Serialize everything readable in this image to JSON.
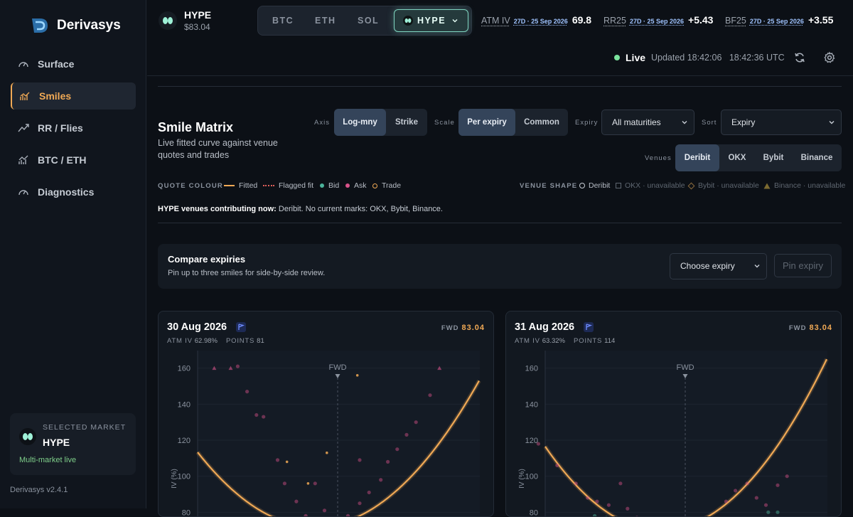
{
  "app": {
    "name": "Derivasys",
    "version": "Derivasys v2.4.1"
  },
  "sidebar": {
    "items": [
      {
        "label": "Surface",
        "icon": "gauge-icon"
      },
      {
        "label": "Smiles",
        "icon": "chart-icon",
        "active": true
      },
      {
        "label": "RR / Flies",
        "icon": "trend-icon"
      },
      {
        "label": "BTC / ETH",
        "icon": "bars-icon"
      },
      {
        "label": "Diagnostics",
        "icon": "gauge-icon"
      }
    ],
    "market_card": {
      "label": "SELECTED MARKET",
      "name": "HYPE",
      "status": "Multi-market live"
    }
  },
  "header": {
    "ticker": {
      "name": "HYPE",
      "price": "$83.04"
    },
    "assets": [
      "BTC",
      "ETH",
      "SOL",
      "HYPE"
    ],
    "selected_asset": "HYPE",
    "metrics": [
      {
        "label": "ATM IV",
        "date": "27D · 25 Sep 2026",
        "value": "69.8"
      },
      {
        "label": "RR25",
        "date": "27D · 25 Sep 2026",
        "value": "+5.43"
      },
      {
        "label": "BF25",
        "date": "27D · 25 Sep 2026",
        "value": "+3.55"
      }
    ],
    "status": {
      "live": "Live",
      "updated": "Updated 18:42:06",
      "time": "18:42:36 UTC"
    }
  },
  "smile_matrix": {
    "title": "Smile Matrix",
    "subtitle": "Live fitted curve against venue quotes and trades",
    "axis": {
      "label": "Axis",
      "options": [
        "Log-mny",
        "Strike"
      ],
      "selected": "Log-mny"
    },
    "scale": {
      "label": "Scale",
      "options": [
        "Per expiry",
        "Common"
      ],
      "selected": "Per expiry"
    },
    "expiry": {
      "label": "Expiry",
      "value": "All maturities"
    },
    "sort": {
      "label": "Sort",
      "value": "Expiry"
    },
    "venues": {
      "label": "Venues",
      "options": [
        "Deribit",
        "OKX",
        "Bybit",
        "Binance"
      ],
      "selected": "Deribit"
    },
    "quote_colour": {
      "label": "QUOTE COLOUR",
      "items": [
        {
          "label": "Fitted",
          "color": "#f0a955"
        },
        {
          "label": "Flagged fit",
          "color": "#e0605a"
        },
        {
          "label": "Bid",
          "color": "#4bb39a"
        },
        {
          "label": "Ask",
          "color": "#d9538a"
        },
        {
          "label": "Trade",
          "color": "#f0a955"
        }
      ]
    },
    "venue_shape": {
      "label": "VENUE SHAPE",
      "items": [
        {
          "label": "Deribit"
        },
        {
          "label": "OKX · unavailable"
        },
        {
          "label": "Bybit · unavailable"
        },
        {
          "label": "Binance · unavailable"
        }
      ]
    },
    "contrib": {
      "strong": "HYPE venues contributing now:",
      "text": " Deribit. No current marks: OKX, Bybit, Binance."
    }
  },
  "compare": {
    "title": "Compare expiries",
    "subtitle": "Pin up to three smiles for side-by-side review.",
    "select": "Choose expiry",
    "button": "Pin expiry"
  },
  "cards": [
    {
      "date": "30 Aug 2026",
      "fwd_label": "FWD",
      "fwd": "83.04",
      "atm_label": "ATM IV",
      "atm": "62.98%",
      "points_label": "POINTS",
      "points": "81"
    },
    {
      "date": "31 Aug 2026",
      "fwd_label": "FWD",
      "fwd": "83.04",
      "atm_label": "ATM IV",
      "atm": "63.32%",
      "points_label": "POINTS",
      "points": "114"
    }
  ],
  "chart_data": [
    {
      "type": "scatter",
      "ylabel": "IV (%)",
      "yticks": [
        160,
        140,
        120,
        100,
        80
      ],
      "ylim": [
        75,
        165
      ],
      "marker_label": "FWD",
      "series": [
        {
          "name": "Fitted"
        },
        {
          "name": "Bid"
        },
        {
          "name": "Ask"
        },
        {
          "name": "Trade"
        }
      ]
    },
    {
      "type": "scatter",
      "ylabel": "IV (%)",
      "yticks": [
        160,
        140,
        120,
        100,
        80
      ],
      "ylim": [
        75,
        165
      ],
      "marker_label": "FWD",
      "series": [
        {
          "name": "Fitted"
        },
        {
          "name": "Bid"
        },
        {
          "name": "Ask"
        },
        {
          "name": "Trade"
        }
      ]
    }
  ]
}
